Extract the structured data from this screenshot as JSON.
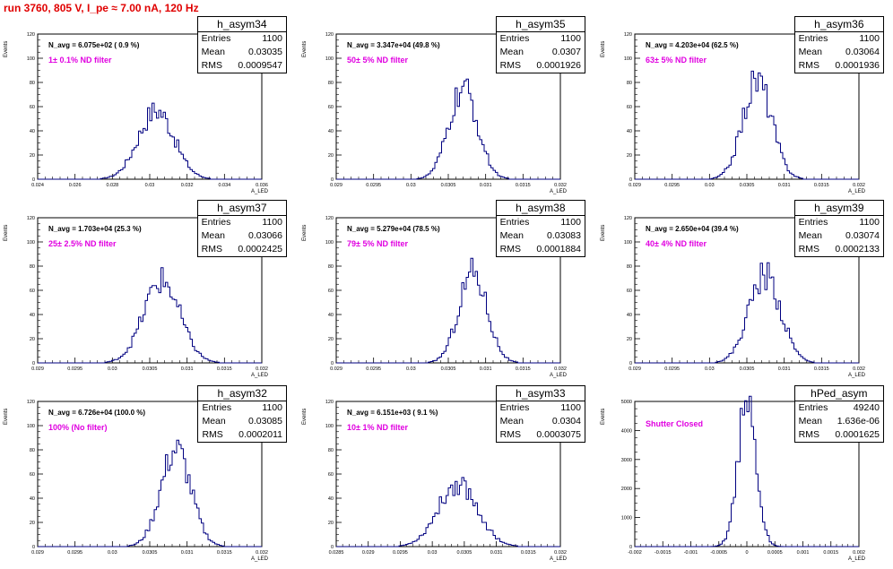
{
  "run_title": "run 3760,   805 V, I_pe ≈ 7.00 nA, 120 Hz",
  "colors": {
    "title": "#e00000",
    "filter_text": "#e000e0",
    "histogram": "#000080",
    "axis": "#000000"
  },
  "axis_labels": {
    "y": "Events",
    "x": "A_LED"
  },
  "chart_data": [
    {
      "type": "histogram",
      "name": "h_asym34",
      "n_avg": "N_avg = 6.075e+02 ( 0.9 %)",
      "filter": "1± 0.1% ND filter",
      "stats": {
        "entries": "1100",
        "mean": "0.03035",
        "rms": "0.0009547"
      },
      "xlim": [
        0.024,
        0.036
      ],
      "ylim": [
        0,
        120
      ],
      "x_ticks": [
        "0.024",
        "0.026",
        "0.028",
        "0.03",
        "0.032",
        "0.034",
        "0.036"
      ],
      "y_ticks": [
        "0",
        "20",
        "40",
        "60",
        "80",
        "100",
        "120"
      ],
      "mean": 0.03035,
      "rms": 0.0009547,
      "peak": 57
    },
    {
      "type": "histogram",
      "name": "h_asym35",
      "n_avg": "N_avg = 3.347e+04 (49.8 %)",
      "filter": "50± 5% ND filter",
      "stats": {
        "entries": "1100",
        "mean": "0.0307",
        "rms": "0.0001926"
      },
      "xlim": [
        0.029,
        0.032
      ],
      "ylim": [
        0,
        120
      ],
      "x_ticks": [
        "0.029",
        "0.0295",
        "0.03",
        "0.0305",
        "0.031",
        "0.0315",
        "0.032"
      ],
      "y_ticks": [
        "0",
        "20",
        "40",
        "60",
        "80",
        "100",
        "120"
      ],
      "mean": 0.0307,
      "rms": 0.0001926,
      "peak": 74
    },
    {
      "type": "histogram",
      "name": "h_asym36",
      "n_avg": "N_avg = 4.203e+04 (62.5 %)",
      "filter": "63± 5% ND filter",
      "stats": {
        "entries": "1100",
        "mean": "0.03064",
        "rms": "0.0001936"
      },
      "xlim": [
        0.029,
        0.032
      ],
      "ylim": [
        0,
        120
      ],
      "x_ticks": [
        "0.029",
        "0.0295",
        "0.03",
        "0.0305",
        "0.031",
        "0.0315",
        "0.032"
      ],
      "y_ticks": [
        "0",
        "20",
        "40",
        "60",
        "80",
        "100",
        "120"
      ],
      "mean": 0.03064,
      "rms": 0.0001936,
      "peak": 82
    },
    {
      "type": "histogram",
      "name": "h_asym37",
      "n_avg": "N_avg = 1.703e+04 (25.3 %)",
      "filter": "25± 2.5% ND filter",
      "stats": {
        "entries": "1100",
        "mean": "0.03066",
        "rms": "0.0002425"
      },
      "xlim": [
        0.029,
        0.032
      ],
      "ylim": [
        0,
        120
      ],
      "x_ticks": [
        "0.029",
        "0.0295",
        "0.03",
        "0.0305",
        "0.031",
        "0.0315",
        "0.032"
      ],
      "y_ticks": [
        "0",
        "20",
        "40",
        "60",
        "80",
        "100",
        "120"
      ],
      "mean": 0.03066,
      "rms": 0.0002425,
      "peak": 68
    },
    {
      "type": "histogram",
      "name": "h_asym38",
      "n_avg": "N_avg = 5.279e+04 (78.5 %)",
      "filter": "79± 5% ND filter",
      "stats": {
        "entries": "1100",
        "mean": "0.03083",
        "rms": "0.0001884"
      },
      "xlim": [
        0.029,
        0.032
      ],
      "ylim": [
        0,
        120
      ],
      "x_ticks": [
        "0.029",
        "0.0295",
        "0.03",
        "0.0305",
        "0.031",
        "0.0315",
        "0.032"
      ],
      "y_ticks": [
        "0",
        "20",
        "40",
        "60",
        "80",
        "100",
        "120"
      ],
      "mean": 0.03083,
      "rms": 0.0001884,
      "peak": 76
    },
    {
      "type": "histogram",
      "name": "h_asym39",
      "n_avg": "N_avg = 2.650e+04 (39.4 %)",
      "filter": "40± 4% ND filter",
      "stats": {
        "entries": "1100",
        "mean": "0.03074",
        "rms": "0.0002133"
      },
      "xlim": [
        0.029,
        0.032
      ],
      "ylim": [
        0,
        120
      ],
      "x_ticks": [
        "0.029",
        "0.0295",
        "0.03",
        "0.0305",
        "0.031",
        "0.0315",
        "0.032"
      ],
      "y_ticks": [
        "0",
        "20",
        "40",
        "60",
        "80",
        "100",
        "120"
      ],
      "mean": 0.03074,
      "rms": 0.0002133,
      "peak": 73
    },
    {
      "type": "histogram",
      "name": "h_asym32",
      "n_avg": "N_avg = 6.726e+04 (100.0 %)",
      "filter": "100% (No filter)",
      "stats": {
        "entries": "1100",
        "mean": "0.03085",
        "rms": "0.0002011"
      },
      "xlim": [
        0.029,
        0.032
      ],
      "ylim": [
        0,
        120
      ],
      "x_ticks": [
        "0.029",
        "0.0295",
        "0.03",
        "0.0305",
        "0.031",
        "0.0315",
        "0.032"
      ],
      "y_ticks": [
        "0",
        "20",
        "40",
        "60",
        "80",
        "100",
        "120"
      ],
      "mean": 0.03085,
      "rms": 0.0002011,
      "peak": 80
    },
    {
      "type": "histogram",
      "name": "h_asym33",
      "n_avg": "N_avg = 6.151e+03 ( 9.1 %)",
      "filter": "10± 1% ND filter",
      "stats": {
        "entries": "1100",
        "mean": "0.0304",
        "rms": "0.0003075"
      },
      "xlim": [
        0.0285,
        0.032
      ],
      "ylim": [
        0,
        120
      ],
      "x_ticks": [
        "0.0285",
        "0.029",
        "0.0295",
        "0.03",
        "0.0305",
        "0.031",
        "0.0315",
        "0.032"
      ],
      "y_ticks": [
        "0",
        "20",
        "40",
        "60",
        "80",
        "100",
        "120"
      ],
      "mean": 0.0304,
      "rms": 0.0003075,
      "peak": 52
    },
    {
      "type": "histogram",
      "name": "hPed_asym",
      "n_avg": "",
      "filter": "Shutter Closed",
      "stats": {
        "entries": "49240",
        "mean": "1.636e-06",
        "rms": "0.0001625"
      },
      "xlim": [
        -0.002,
        0.002
      ],
      "ylim": [
        0,
        5000
      ],
      "x_ticks": [
        "-0.002",
        "-0.0015",
        "-0.001",
        "-0.0005",
        "0",
        "0.0005",
        "0.001",
        "0.0015",
        "0.002"
      ],
      "y_ticks": [
        "0",
        "1000",
        "2000",
        "3000",
        "4000",
        "5000"
      ],
      "mean": 1.6e-06,
      "rms": 0.0001625,
      "peak": 5000
    }
  ]
}
